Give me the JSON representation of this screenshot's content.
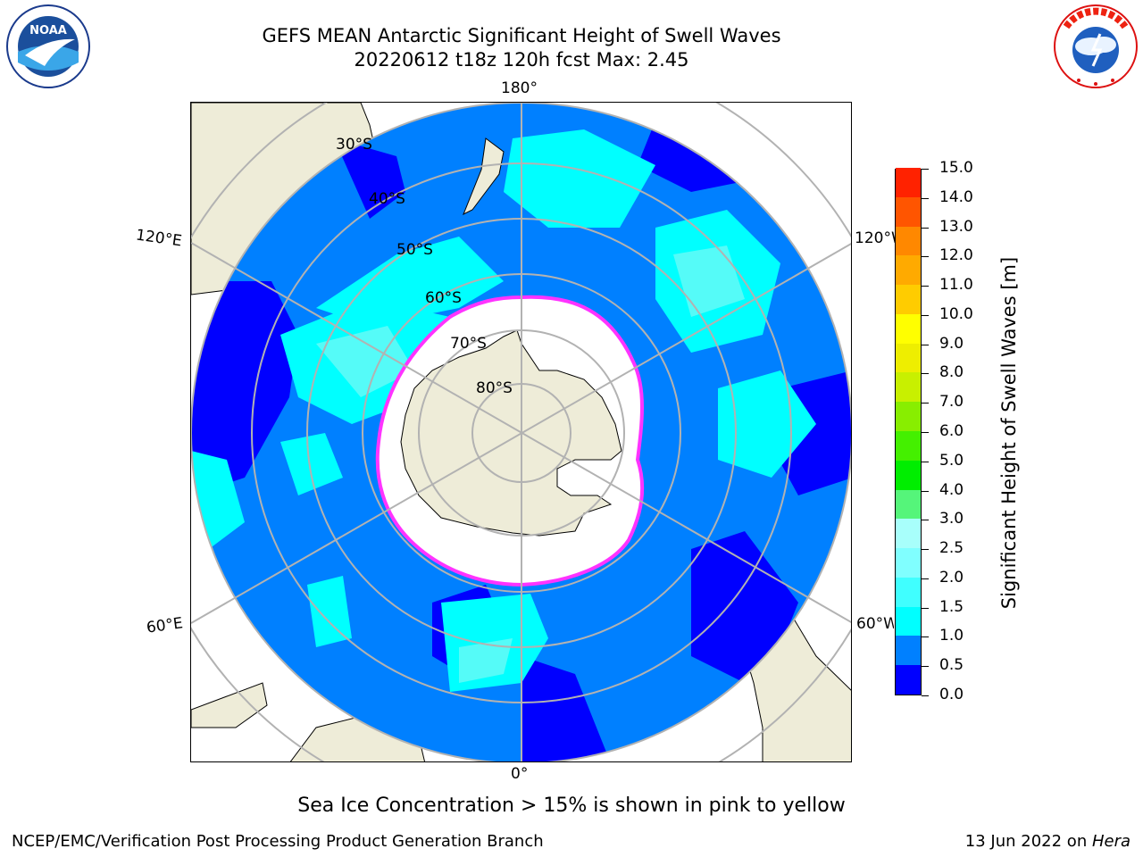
{
  "header": {
    "title_line1": "GEFS MEAN Antarctic Significant Height of Swell Waves",
    "title_line2": "20220612 t18z 120h fcst   Max: 2.45"
  },
  "logos": {
    "left": {
      "name": "NOARA",
      "ring_text": "NATIONAL OCEANIC AND ATMOSPHERIC ADMINISTRATION · U.S. DEPARTMENT OF COMMERCE"
    },
    "right": {
      "ring_text": "NATIONAL WEATHER SERVICE"
    }
  },
  "map": {
    "longitude_labels": {
      "top": "180°",
      "bottom": "0°",
      "upper_left": "120°E",
      "lower_left": "60°E",
      "upper_right": "120°W",
      "lower_right": "60°W"
    },
    "latitude_labels": [
      "30°S",
      "40°S",
      "50°S",
      "60°S",
      "70°S",
      "80°S"
    ],
    "colors": {
      "land": "#eeecd8",
      "ocean_low": "#0000ff",
      "ocean_mid": "#0080ff",
      "ocean_high": "#00ffff",
      "ocean_higher": "#55fbf8",
      "ice": "#ffffff",
      "ice_edge": "#ff33ff",
      "grid": "#b2b2b2"
    }
  },
  "colorbar": {
    "title": "Significant Height of Swell Waves [m]",
    "ticks": [
      "0.0",
      "0.5",
      "1.0",
      "1.5",
      "2.0",
      "2.5",
      "3.0",
      "4.0",
      "5.0",
      "6.0",
      "7.0",
      "8.0",
      "9.0",
      "10.0",
      "11.0",
      "12.0",
      "13.0",
      "14.0",
      "15.0"
    ],
    "colors": [
      "#0000ff",
      "#0080ff",
      "#00ffff",
      "#40ffff",
      "#80ffff",
      "#a8fffb",
      "#55f57a",
      "#00ee00",
      "#44f000",
      "#88ee00",
      "#c8f000",
      "#eeee00",
      "#ffff00",
      "#ffcc00",
      "#ffaa00",
      "#ff8800",
      "#ff5500",
      "#ff2200"
    ]
  },
  "notes": {
    "sea_ice": "Sea Ice Concentration > 15% is shown in pink to yellow",
    "branch": "NCEP/EMC/Verification Post Processing Product Generation Branch",
    "date": "13 Jun 2022 on ",
    "machine": "Hera"
  }
}
